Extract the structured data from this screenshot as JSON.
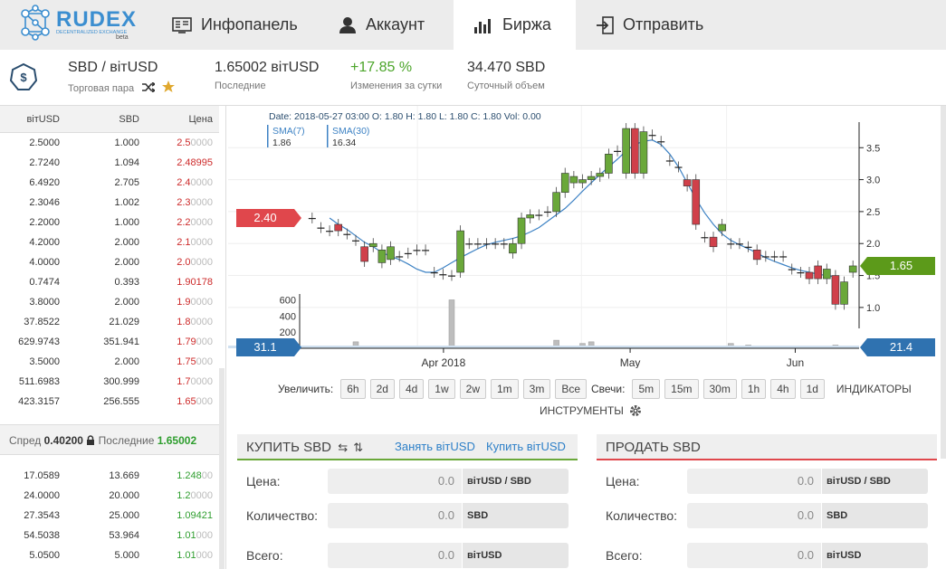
{
  "nav": {
    "logo_brand": "RUDEX",
    "logo_tag": "DECENTRALIZED EXCHANGE",
    "logo_beta": "beta",
    "tabs": [
      {
        "label": "Инфопанель",
        "icon": "dashboard-icon"
      },
      {
        "label": "Аккаунт",
        "icon": "user-icon"
      },
      {
        "label": "Биржа",
        "icon": "bar-chart-icon",
        "active": true
      },
      {
        "label": "Отправить",
        "icon": "send-icon"
      }
    ]
  },
  "pair": {
    "name": "SBD / вітUSD",
    "name_label": "Торговая пара",
    "last": "1.65002 вітUSD",
    "last_label": "Последние",
    "change": "+17.85 %",
    "change_label": "Изменения за сутки",
    "volume": "34.470 SBD",
    "volume_label": "Суточный объем"
  },
  "orderbook": {
    "headers": [
      "вітUSD",
      "SBD",
      "Цена"
    ],
    "asks": [
      {
        "total": "2.5000",
        "amount": "1.000",
        "price": "2.5",
        "price_tail": "0000"
      },
      {
        "total": "2.7240",
        "amount": "1.094",
        "price": "2.48995",
        "price_tail": ""
      },
      {
        "total": "6.4920",
        "amount": "2.705",
        "price": "2.4",
        "price_tail": "0000"
      },
      {
        "total": "2.3046",
        "amount": "1.002",
        "price": "2.3",
        "price_tail": "0000"
      },
      {
        "total": "2.2000",
        "amount": "1.000",
        "price": "2.2",
        "price_tail": "0000"
      },
      {
        "total": "4.2000",
        "amount": "2.000",
        "price": "2.1",
        "price_tail": "0000"
      },
      {
        "total": "4.0000",
        "amount": "2.000",
        "price": "2.0",
        "price_tail": "0000"
      },
      {
        "total": "0.7474",
        "amount": "0.393",
        "price": "1.90178",
        "price_tail": ""
      },
      {
        "total": "3.8000",
        "amount": "2.000",
        "price": "1.9",
        "price_tail": "0000"
      },
      {
        "total": "37.8522",
        "amount": "21.029",
        "price": "1.8",
        "price_tail": "0000"
      },
      {
        "total": "629.9743",
        "amount": "351.941",
        "price": "1.79",
        "price_tail": "000"
      },
      {
        "total": "3.5000",
        "amount": "2.000",
        "price": "1.75",
        "price_tail": "000"
      },
      {
        "total": "511.6983",
        "amount": "300.999",
        "price": "1.7",
        "price_tail": "0000"
      },
      {
        "total": "423.3157",
        "amount": "256.555",
        "price": "1.65",
        "price_tail": "000"
      }
    ],
    "spread_label": "Спред",
    "spread_value": "0.40200",
    "last_label": "Последние",
    "last_value": "1.65002",
    "bids": [
      {
        "total": "17.0589",
        "amount": "13.669",
        "price": "1.248",
        "price_tail": "00"
      },
      {
        "total": "24.0000",
        "amount": "20.000",
        "price": "1.2",
        "price_tail": "0000"
      },
      {
        "total": "27.3543",
        "amount": "25.000",
        "price": "1.09421",
        "price_tail": ""
      },
      {
        "total": "54.5038",
        "amount": "53.964",
        "price": "1.01",
        "price_tail": "000"
      },
      {
        "total": "5.0500",
        "amount": "5.000",
        "price": "1.01",
        "price_tail": "000"
      }
    ]
  },
  "chart": {
    "info_line": "Date: 2018-05-27 03:00 O: 1.80 H: 1.80 L: 1.80 C: 1.80 Vol: 0.00",
    "sma7_label": "SMA(7)",
    "sma7_value": "1.86",
    "sma30_label": "SMA(30)",
    "sma30_value": "16.34",
    "price_ticks": [
      "3.5",
      "3.0",
      "2.5",
      "2.0",
      "1.5",
      "1.0"
    ],
    "volume_ticks": [
      "600",
      "400",
      "200"
    ],
    "x_ticks": [
      "Apr 2018",
      "May",
      "Jun"
    ],
    "left_badge_price": "2.40",
    "right_badge_price": "1.65",
    "left_badge_volume": "31.1",
    "right_badge_volume": "21.4",
    "colors": {
      "up": "#6aa83a",
      "down": "#d0404a",
      "sma": "#3d82c4",
      "volume": "#bdbdbd",
      "badge_red": "#e0474c",
      "badge_green": "#5c9a1a",
      "badge_blue": "#2f72b0"
    }
  },
  "chart_data": {
    "type": "candlestick",
    "x_ticks": [
      "Apr 2018",
      "May",
      "Jun"
    ],
    "ylim": [
      0.8,
      3.9
    ],
    "candles": [
      {
        "o": 2.4,
        "c": 2.4
      },
      {
        "o": 2.25,
        "c": 2.25
      },
      {
        "o": 2.2,
        "c": 2.2
      },
      {
        "o": 2.3,
        "c": 2.2
      },
      {
        "o": 2.15,
        "c": 2.15
      },
      {
        "o": 2.05,
        "c": 2.05
      },
      {
        "o": 1.95,
        "c": 1.72
      },
      {
        "o": 1.95,
        "c": 2.0
      },
      {
        "o": 1.7,
        "c": 1.9
      },
      {
        "o": 1.75,
        "c": 1.95
      },
      {
        "o": 1.8,
        "c": 1.8
      },
      {
        "o": 1.85,
        "c": 1.85
      },
      {
        "o": 1.9,
        "c": 1.9
      },
      {
        "o": 1.9,
        "c": 1.9
      },
      {
        "o": 1.55,
        "c": 1.55
      },
      {
        "o": 1.52,
        "c": 1.52
      },
      {
        "o": 1.5,
        "c": 1.5
      },
      {
        "o": 1.55,
        "c": 2.2
      },
      {
        "o": 2.0,
        "c": 2.0
      },
      {
        "o": 2.0,
        "c": 2.0
      },
      {
        "o": 2.0,
        "c": 2.0
      },
      {
        "o": 2.0,
        "c": 2.0
      },
      {
        "o": 2.0,
        "c": 2.0
      },
      {
        "o": 1.85,
        "c": 2.0
      },
      {
        "o": 2.0,
        "c": 2.4
      },
      {
        "o": 2.4,
        "c": 2.45
      },
      {
        "o": 2.45,
        "c": 2.45
      },
      {
        "o": 2.5,
        "c": 2.5
      },
      {
        "o": 2.5,
        "c": 2.8
      },
      {
        "o": 2.8,
        "c": 3.1
      },
      {
        "o": 2.95,
        "c": 3.05
      },
      {
        "o": 2.95,
        "c": 3.0
      },
      {
        "o": 3.0,
        "c": 3.05
      },
      {
        "o": 3.05,
        "c": 3.1
      },
      {
        "o": 3.1,
        "c": 3.4
      },
      {
        "o": 3.45,
        "c": 3.45
      },
      {
        "o": 3.1,
        "c": 3.8
      },
      {
        "o": 3.8,
        "c": 3.1
      },
      {
        "o": 3.1,
        "c": 3.75
      },
      {
        "o": 3.7,
        "c": 3.7
      },
      {
        "o": 3.6,
        "c": 3.6
      },
      {
        "o": 3.3,
        "c": 3.3
      },
      {
        "o": 3.2,
        "c": 3.2
      },
      {
        "o": 3.0,
        "c": 2.9
      },
      {
        "o": 3.0,
        "c": 2.3
      },
      {
        "o": 2.1,
        "c": 2.1
      },
      {
        "o": 2.1,
        "c": 1.95
      },
      {
        "o": 2.2,
        "c": 2.3
      },
      {
        "o": 2.0,
        "c": 2.0
      },
      {
        "o": 2.0,
        "c": 2.0
      },
      {
        "o": 1.95,
        "c": 1.95
      },
      {
        "o": 1.9,
        "c": 1.75
      },
      {
        "o": 1.8,
        "c": 1.8
      },
      {
        "o": 1.8,
        "c": 1.8
      },
      {
        "o": 1.8,
        "c": 1.8
      },
      {
        "o": 1.6,
        "c": 1.6
      },
      {
        "o": 1.55,
        "c": 1.55
      },
      {
        "o": 1.55,
        "c": 1.45
      },
      {
        "o": 1.65,
        "c": 1.45
      },
      {
        "o": 1.45,
        "c": 1.6
      },
      {
        "o": 1.5,
        "c": 1.05
      },
      {
        "o": 1.05,
        "c": 1.4
      },
      {
        "o": 1.55,
        "c": 1.65
      }
    ],
    "sma": [
      2.4,
      2.3,
      2.22,
      2.12,
      2.02,
      1.95,
      1.86,
      1.8,
      1.75,
      1.68,
      1.6,
      1.55,
      1.55,
      1.62,
      1.7,
      1.78,
      1.85,
      1.92,
      1.98,
      2.02,
      2.05,
      2.08,
      2.12,
      2.18,
      2.25,
      2.35,
      2.45,
      2.55,
      2.68,
      2.82,
      2.95,
      3.08,
      3.2,
      3.32,
      3.45,
      3.55,
      3.6,
      3.62,
      3.55,
      3.4,
      3.2,
      2.95,
      2.7,
      2.48,
      2.3,
      2.15,
      2.05,
      1.98,
      1.92,
      1.85,
      1.78,
      1.72,
      1.67,
      1.62,
      1.58,
      1.55,
      1.52,
      1.5,
      1.48
    ],
    "volumes": [
      0,
      10,
      0,
      30,
      0,
      80,
      20,
      0,
      10,
      5,
      0,
      0,
      5,
      0,
      10,
      0,
      600,
      5,
      0,
      0,
      0,
      10,
      5,
      0,
      0,
      10,
      0,
      5,
      100,
      10,
      30,
      60,
      80,
      20,
      10,
      5,
      0,
      10,
      0,
      0,
      0,
      10,
      0,
      0,
      0,
      5,
      0,
      0,
      60,
      10,
      40,
      5,
      0,
      0,
      10,
      0,
      5,
      0,
      5,
      30,
      40,
      5,
      5
    ],
    "volume_ylim": [
      0,
      650
    ]
  },
  "controls": {
    "zoom_label": "Увеличить:",
    "zoom_options": [
      "6h",
      "2d",
      "4d",
      "1w",
      "2w",
      "1m",
      "3m",
      "Все"
    ],
    "candles_label": "Свечи:",
    "candle_options": [
      "5m",
      "15m",
      "30m",
      "1h",
      "4h",
      "1d"
    ],
    "indicators_label": "ИНДИКАТОРЫ",
    "tools_label": "ИНСТРУМЕНТЫ"
  },
  "buy": {
    "title": "КУПИТЬ SBD",
    "borrow_link": "Занять вітUSD",
    "buy_link": "Купить вітUSD",
    "accent": "#6aa83a",
    "fields": [
      {
        "label": "Цена:",
        "value": "0.0",
        "unit": "вітUSD / SBD"
      },
      {
        "label": "Количество:",
        "value": "0.0",
        "unit": "SBD"
      },
      {
        "label": "Всего:",
        "value": "0.0",
        "unit": "вітUSD"
      }
    ]
  },
  "sell": {
    "title": "ПРОДАТЬ SBD",
    "accent": "#e0474c",
    "fields": [
      {
        "label": "Цена:",
        "value": "0.0",
        "unit": "вітUSD / SBD"
      },
      {
        "label": "Количество:",
        "value": "0.0",
        "unit": "SBD"
      },
      {
        "label": "Всего:",
        "value": "0.0",
        "unit": "вітUSD"
      }
    ]
  }
}
